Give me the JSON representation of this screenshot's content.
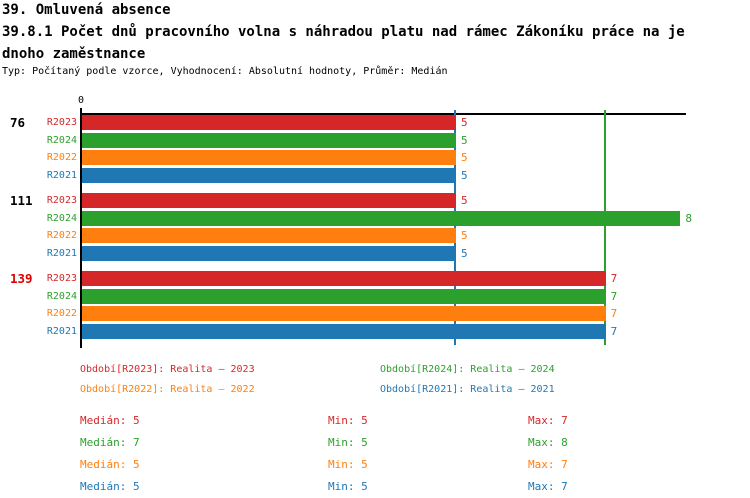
{
  "header": {
    "title": "39. Omluvená absence",
    "indicator_line1": "39.8.1 Počet dnů pracovního volna s náhradou platu nad rámec Zákoníku práce na je",
    "indicator_line2": "dnoho zaměstnance",
    "subtitle": "Typ: Počítaný podle vzorce, Vyhodnocení: Absolutní hodnoty, Průměr: Medián"
  },
  "colors": {
    "red": "#d62728",
    "green": "#2ca02c",
    "orange": "#ff7f0e",
    "blue": "#1f77b4",
    "axis": "#000000",
    "group_label_default": "#000000",
    "group_label_highlight": "#dd0000"
  },
  "chart_data": {
    "type": "bar",
    "orientation": "horizontal",
    "axis": {
      "origin_label": "0",
      "xlim": [
        0,
        8.1
      ],
      "grid": false
    },
    "series": [
      {
        "label": "R2023",
        "color": "#d62728"
      },
      {
        "label": "R2024",
        "color": "#2ca02c"
      },
      {
        "label": "R2022",
        "color": "#ff7f0e"
      },
      {
        "label": "R2021",
        "color": "#1f77b4"
      }
    ],
    "groups": [
      {
        "label": "76",
        "label_color": "#000000",
        "values": [
          5,
          5,
          5,
          5
        ]
      },
      {
        "label": "111",
        "label_color": "#000000",
        "values": [
          5,
          8,
          5,
          5
        ]
      },
      {
        "label": "139",
        "label_color": "#dd0000",
        "values": [
          7,
          7,
          7,
          7
        ]
      }
    ],
    "median_lines": [
      {
        "value": 5,
        "color": "#1f77b4"
      },
      {
        "value": 7,
        "color": "#2ca02c"
      }
    ]
  },
  "legend": {
    "items": [
      {
        "text": "Období[R2023]: Realita – 2023",
        "color": "#d62728"
      },
      {
        "text": "Období[R2024]: Realita – 2024",
        "color": "#2ca02c"
      },
      {
        "text": "Období[R2022]: Realita – 2022",
        "color": "#ff7f0e"
      },
      {
        "text": "Období[R2021]: Realita – 2021",
        "color": "#1f77b4"
      }
    ]
  },
  "stats": {
    "columns": {
      "median": "Medián",
      "min": "Min",
      "max": "Max"
    },
    "rows": [
      {
        "series": "R2023",
        "median": 5,
        "min": 5,
        "max": 7,
        "color": "#d62728"
      },
      {
        "series": "R2024",
        "median": 7,
        "min": 5,
        "max": 8,
        "color": "#2ca02c"
      },
      {
        "series": "R2022",
        "median": 5,
        "min": 5,
        "max": 7,
        "color": "#ff7f0e"
      },
      {
        "series": "R2021",
        "median": 5,
        "min": 5,
        "max": 7,
        "color": "#1f77b4"
      }
    ]
  }
}
